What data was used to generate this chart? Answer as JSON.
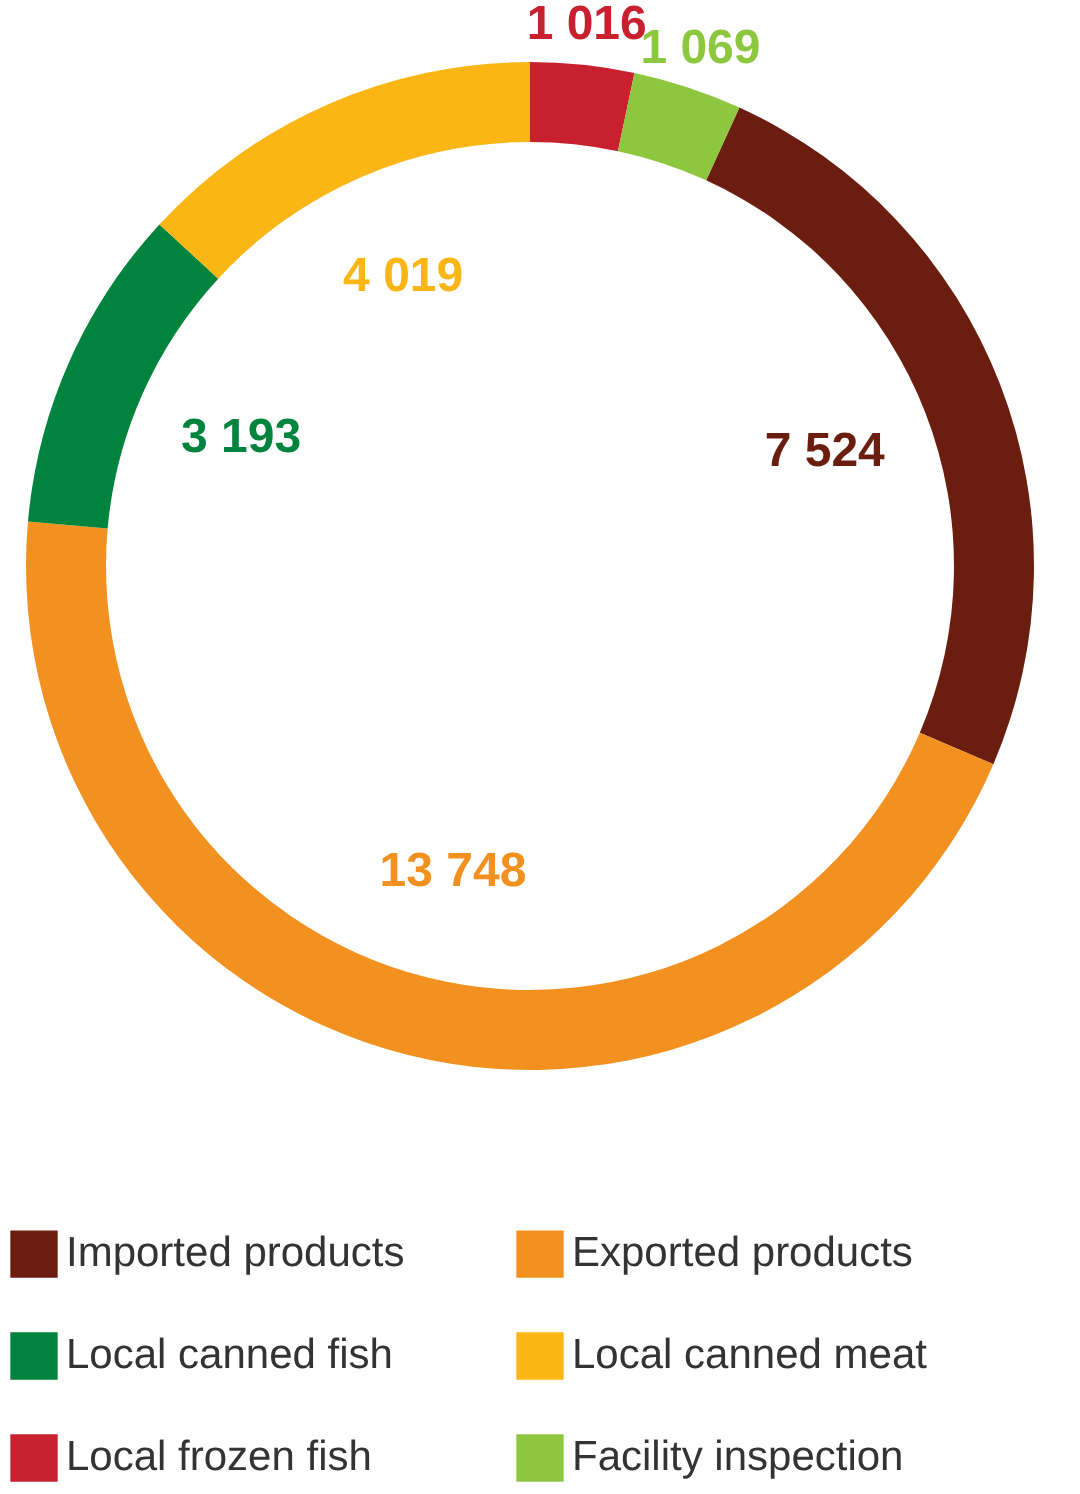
{
  "chart_data": {
    "type": "donut",
    "categories": [
      "Imported products",
      "Exported products",
      "Local canned fish",
      "Local canned meat",
      "Local frozen fish",
      "Facility inspection"
    ],
    "values": [
      7524,
      13748,
      3193,
      4019,
      1016,
      1069
    ],
    "colors": [
      "#6b1d0f",
      "#f39120",
      "#00843d",
      "#fbb615",
      "#c8202f",
      "#8dc63f"
    ],
    "value_labels": [
      "7 524",
      "13 748",
      "3 193",
      "4 019",
      "1 016",
      "1 069"
    ],
    "legend": "bottom"
  }
}
